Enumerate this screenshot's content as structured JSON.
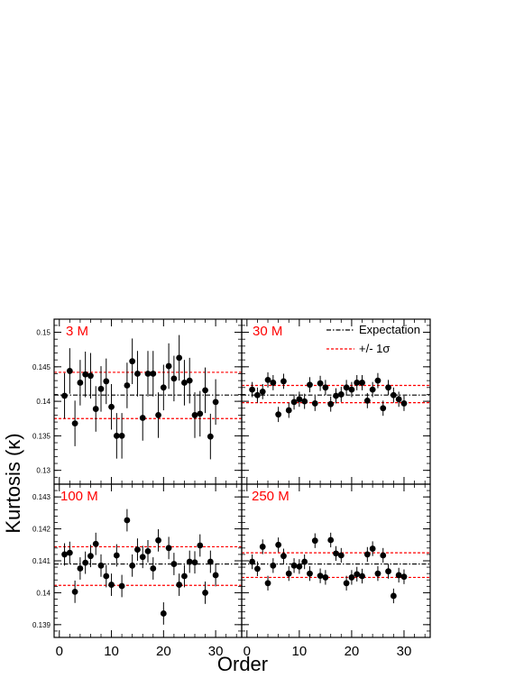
{
  "chart_data": {
    "type": "scatter",
    "xlabel": "Order",
    "ylabel": "Kurtosis (κ)",
    "xlim": [
      -1,
      35
    ],
    "xticks": [
      0,
      10,
      20,
      30
    ],
    "xtick_labels": [
      "0",
      "10",
      "20",
      "30"
    ],
    "legend": {
      "placement": "top-right of panel 30 M",
      "entries": [
        {
          "label": "Expectation",
          "style": "dash-dot",
          "color": "#000000"
        },
        {
          "label": "+/- 1σ",
          "style": "dashed",
          "color": "#ff0000"
        }
      ]
    },
    "panels": [
      {
        "label": "3 M",
        "ylim": [
          0.128,
          0.1519
        ],
        "yticks": [
          0.13,
          0.135,
          0.14,
          0.145,
          0.15
        ],
        "ytick_labels": [
          "0.13",
          "0.135",
          "0.14",
          "0.145",
          "0.15"
        ],
        "expectation": 0.1409,
        "band": [
          0.1375,
          0.1442
        ],
        "x": [
          1,
          2,
          3,
          4,
          5,
          6,
          7,
          8,
          9,
          10,
          11,
          12,
          13,
          14,
          15,
          16,
          17,
          18,
          19,
          20,
          21,
          22,
          23,
          24,
          25,
          26,
          27,
          28,
          29,
          30
        ],
        "y": [
          0.1408,
          0.1444,
          0.1368,
          0.1427,
          0.1439,
          0.1437,
          0.1389,
          0.1418,
          0.1429,
          0.1392,
          0.135,
          0.135,
          0.1423,
          0.1458,
          0.144,
          0.1376,
          0.144,
          0.144,
          0.138,
          0.142,
          0.1451,
          0.1433,
          0.1463,
          0.1427,
          0.143,
          0.138,
          0.1382,
          0.1416,
          0.1349,
          0.1399
        ],
        "yerr": 0.0033
      },
      {
        "label": "30 M",
        "ylim": [
          0.128,
          0.1519
        ],
        "yticks": [
          0.13,
          0.135,
          0.14,
          0.145,
          0.15
        ],
        "ytick_labels": [
          "",
          "",
          "",
          "",
          ""
        ],
        "expectation": 0.1409,
        "band": [
          0.1398,
          0.1423
        ],
        "x": [
          1,
          2,
          3,
          4,
          5,
          6,
          7,
          8,
          9,
          10,
          11,
          12,
          13,
          14,
          15,
          16,
          17,
          18,
          19,
          20,
          21,
          22,
          23,
          24,
          25,
          26,
          27,
          28,
          29,
          30
        ],
        "y": [
          0.1417,
          0.1409,
          0.1414,
          0.1431,
          0.1427,
          0.1381,
          0.1429,
          0.1387,
          0.1399,
          0.1403,
          0.14,
          0.1424,
          0.1397,
          0.1426,
          0.142,
          0.1396,
          0.1408,
          0.141,
          0.142,
          0.1417,
          0.1427,
          0.1427,
          0.1401,
          0.1417,
          0.143,
          0.139,
          0.142,
          0.1409,
          0.1403,
          0.1397
        ],
        "yerr": 0.0011
      },
      {
        "label": "100 M",
        "ylim": [
          0.1386,
          0.1434
        ],
        "yticks": [
          0.139,
          0.14,
          0.141,
          0.142,
          0.143
        ],
        "ytick_labels": [
          "0.139",
          "0.14",
          "0.141",
          "0.142",
          "0.143"
        ],
        "expectation": 0.1409,
        "band": [
          0.14023,
          0.14144
        ],
        "x": [
          1,
          2,
          3,
          4,
          5,
          6,
          7,
          8,
          9,
          10,
          11,
          12,
          13,
          14,
          15,
          16,
          17,
          18,
          19,
          20,
          21,
          22,
          23,
          24,
          25,
          26,
          27,
          28,
          29,
          30
        ],
        "y": [
          0.1412,
          0.14125,
          0.14003,
          0.14076,
          0.14094,
          0.14115,
          0.14153,
          0.14085,
          0.14052,
          0.14025,
          0.14117,
          0.14021,
          0.14227,
          0.14085,
          0.14135,
          0.14112,
          0.1413,
          0.14076,
          0.14164,
          0.13935,
          0.1414,
          0.1409,
          0.14025,
          0.14052,
          0.14097,
          0.14095,
          0.14148,
          0.14,
          0.14097,
          0.14055
        ],
        "yerr": 0.00035
      },
      {
        "label": "250 M",
        "ylim": [
          0.1386,
          0.1434
        ],
        "yticks": [
          0.139,
          0.14,
          0.141,
          0.142,
          0.143
        ],
        "ytick_labels": [
          "",
          "",
          "",
          "",
          ""
        ],
        "expectation": 0.1409,
        "band": [
          0.14048,
          0.14125
        ],
        "x": [
          1,
          2,
          3,
          4,
          5,
          6,
          7,
          8,
          9,
          10,
          11,
          12,
          13,
          14,
          15,
          16,
          17,
          18,
          19,
          20,
          21,
          22,
          23,
          24,
          25,
          26,
          27,
          28,
          29,
          30
        ],
        "y": [
          0.14097,
          0.14075,
          0.14144,
          0.1403,
          0.14085,
          0.1415,
          0.14115,
          0.1406,
          0.14085,
          0.14082,
          0.14097,
          0.1406,
          0.14163,
          0.14053,
          0.14048,
          0.14165,
          0.14123,
          0.14117,
          0.1403,
          0.14048,
          0.14058,
          0.14052,
          0.1412,
          0.14138,
          0.1406,
          0.14117,
          0.14067,
          0.1399,
          0.14055,
          0.1405
        ],
        "yerr": 0.00023
      }
    ]
  }
}
